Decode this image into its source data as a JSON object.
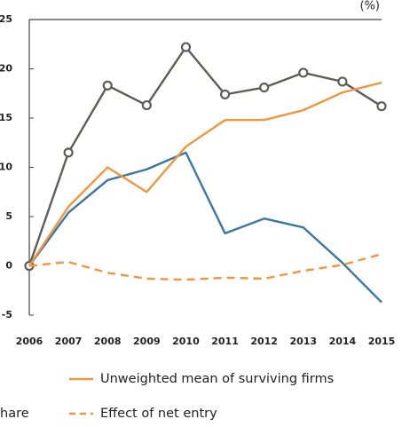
{
  "chart_data": {
    "type": "line",
    "unit_label": "(%)",
    "x": [
      2006,
      2007,
      2008,
      2009,
      2010,
      2011,
      2012,
      2013,
      2014,
      2015
    ],
    "xlim": [
      2006,
      2015
    ],
    "xticks": [
      2006,
      2007,
      2008,
      2009,
      2010,
      2011,
      2012,
      2013,
      2014,
      2015
    ],
    "ylim": [
      -5,
      25
    ],
    "yticks": [
      25,
      20,
      15,
      10,
      5,
      0,
      -5
    ],
    "grid": false,
    "series": [
      {
        "color": "#5e5d58",
        "markers": true,
        "values": [
          0,
          11.5,
          18.3,
          16.3,
          22.2,
          17.4,
          18.1,
          19.6,
          18.7,
          16.2
        ]
      },
      {
        "color": "#3b77a2",
        "values": [
          0,
          5.4,
          8.7,
          9.8,
          11.5,
          3.3,
          4.8,
          3.9,
          0.3,
          -3.7
        ]
      },
      {
        "name": "Unweighted mean of surviving firms",
        "color": "#f0963c",
        "values": [
          0,
          6,
          10,
          7.5,
          12.1,
          14.8,
          14.8,
          15.8,
          17.6,
          18.6
        ]
      },
      {
        "name": "Effect of net entry",
        "color": "#f0963c",
        "dashed": true,
        "values": [
          0,
          0.4,
          -0.7,
          -1.3,
          -1.4,
          -1.2,
          -1.3,
          -0.5,
          0.1,
          1.2
        ]
      }
    ],
    "legend_fragment": "hare"
  }
}
